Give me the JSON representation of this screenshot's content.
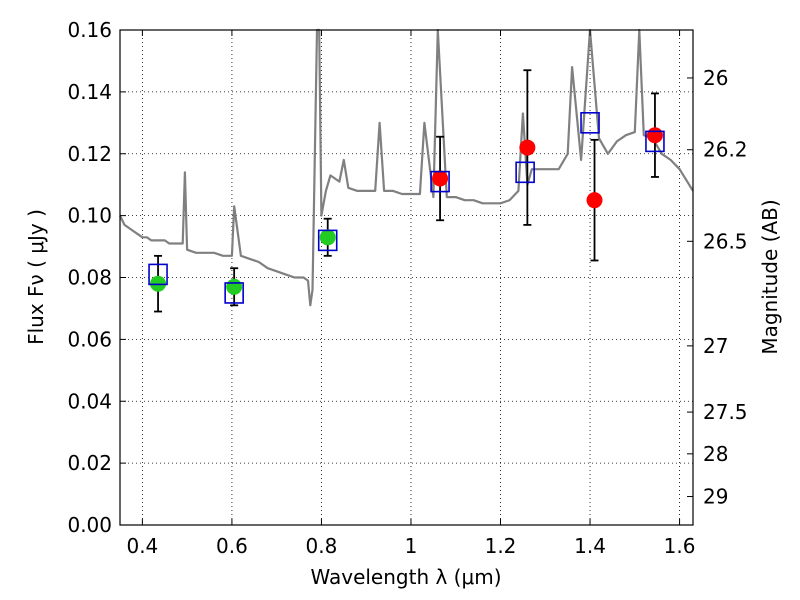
{
  "chart_data": {
    "type": "scatter",
    "title": "",
    "xlabel": "Wavelength  λ (μm)",
    "ylabel": "Flux  Fν  ( μJy )",
    "ylabel_right": "Magnitude (AB)",
    "xlim": [
      0.35,
      1.63
    ],
    "ylim": [
      0.0,
      0.16
    ],
    "grid": true,
    "x_ticks": [
      0.4,
      0.6,
      0.8,
      1.0,
      1.2,
      1.4,
      1.6
    ],
    "x_tick_labels": [
      "0.4",
      "0.6",
      "0.8",
      "1",
      "1.2",
      "1.4",
      "1.6"
    ],
    "y_ticks": [
      0.0,
      0.02,
      0.04,
      0.06,
      0.08,
      0.1,
      0.12,
      0.14,
      0.16
    ],
    "y_tick_labels": [
      "0.00",
      "0.02",
      "0.04",
      "0.06",
      "0.08",
      "0.10",
      "0.12",
      "0.14",
      "0.16"
    ],
    "right_ticks": [
      {
        "flux": 0.1445,
        "label": "26"
      },
      {
        "flux": 0.1213,
        "label": "26.2"
      },
      {
        "flux": 0.0917,
        "label": "26.5"
      },
      {
        "flux": 0.0579,
        "label": "27"
      },
      {
        "flux": 0.0365,
        "label": "27.5"
      },
      {
        "flux": 0.023,
        "label": "28"
      },
      {
        "flux": 0.0092,
        "label": "29"
      }
    ],
    "series": [
      {
        "kind": "model-spectrum",
        "color": "#808080",
        "x": [
          0.35,
          0.36,
          0.37,
          0.38,
          0.39,
          0.4,
          0.41,
          0.42,
          0.43,
          0.44,
          0.45,
          0.46,
          0.47,
          0.48,
          0.49,
          0.495,
          0.5,
          0.52,
          0.54,
          0.56,
          0.58,
          0.6,
          0.605,
          0.62,
          0.64,
          0.66,
          0.68,
          0.7,
          0.72,
          0.74,
          0.76,
          0.77,
          0.775,
          0.78,
          0.79,
          0.795,
          0.8,
          0.81,
          0.82,
          0.84,
          0.85,
          0.86,
          0.88,
          0.9,
          0.92,
          0.93,
          0.94,
          0.96,
          0.98,
          1.0,
          1.02,
          1.03,
          1.05,
          1.06,
          1.08,
          1.1,
          1.12,
          1.14,
          1.16,
          1.18,
          1.2,
          1.22,
          1.24,
          1.25,
          1.26,
          1.27,
          1.3,
          1.33,
          1.35,
          1.36,
          1.38,
          1.4,
          1.42,
          1.44,
          1.46,
          1.48,
          1.5,
          1.51,
          1.52,
          1.54,
          1.56,
          1.58,
          1.6,
          1.63
        ],
        "y": [
          0.1,
          0.097,
          0.096,
          0.095,
          0.094,
          0.093,
          0.093,
          0.092,
          0.092,
          0.092,
          0.092,
          0.091,
          0.091,
          0.091,
          0.091,
          0.114,
          0.089,
          0.088,
          0.088,
          0.088,
          0.087,
          0.087,
          0.103,
          0.087,
          0.086,
          0.085,
          0.083,
          0.082,
          0.081,
          0.08,
          0.08,
          0.079,
          0.071,
          0.076,
          0.16,
          0.16,
          0.1,
          0.108,
          0.113,
          0.111,
          0.118,
          0.109,
          0.108,
          0.108,
          0.108,
          0.13,
          0.108,
          0.108,
          0.107,
          0.107,
          0.107,
          0.13,
          0.106,
          0.16,
          0.106,
          0.106,
          0.105,
          0.105,
          0.104,
          0.104,
          0.104,
          0.105,
          0.108,
          0.133,
          0.11,
          0.115,
          0.115,
          0.115,
          0.12,
          0.148,
          0.118,
          0.16,
          0.125,
          0.12,
          0.124,
          0.126,
          0.127,
          0.16,
          0.126,
          0.125,
          0.12,
          0.118,
          0.115,
          0.108
        ]
      },
      {
        "kind": "observed-optical",
        "color": "#22cc22",
        "x": [
          0.435,
          0.605,
          0.814
        ],
        "y": [
          0.078,
          0.077,
          0.093
        ],
        "err": [
          0.009,
          0.006,
          0.006
        ]
      },
      {
        "kind": "observed-nir",
        "color": "#ff0000",
        "x": [
          1.065,
          1.26,
          1.41,
          1.545
        ],
        "y": [
          0.112,
          0.122,
          0.105,
          0.126
        ],
        "err": [
          0.0135,
          0.025,
          0.0195,
          0.0135
        ]
      },
      {
        "kind": "model-photometry",
        "color": "#0000cc",
        "x": [
          0.435,
          0.605,
          0.814,
          1.065,
          1.255,
          1.4,
          1.545
        ],
        "y": [
          0.081,
          0.075,
          0.092,
          0.111,
          0.114,
          0.13,
          0.124
        ]
      }
    ]
  }
}
